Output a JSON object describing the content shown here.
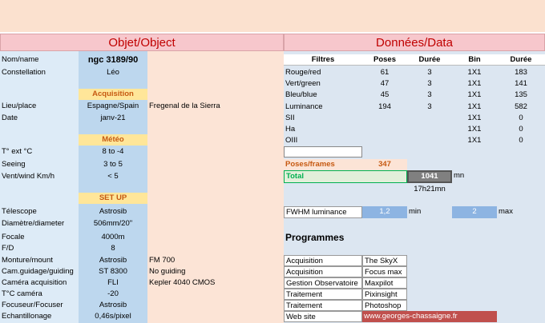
{
  "headers": {
    "object": "Objet/Object",
    "data": "Données/Data"
  },
  "left_rows": [
    {
      "label": "Nom/name",
      "value": "ngc 3189/90",
      "note": ""
    },
    {
      "label": "Constellation",
      "value": "Léo",
      "note": ""
    },
    {
      "label": "",
      "value": "Acquisition",
      "note": ""
    },
    {
      "label": "Lieu/place",
      "value": "Espagne/Spain",
      "note": "Fregenal de la Sierra"
    },
    {
      "label": "Date",
      "value": "janv-21",
      "note": ""
    },
    {
      "label": "",
      "value": "Météo",
      "note": ""
    },
    {
      "label": "T° ext °C",
      "value": "8 to -4",
      "note": ""
    },
    {
      "label": "Seeing",
      "value": "3 to 5",
      "note": ""
    },
    {
      "label": "Vent/wind  Km/h",
      "value": "< 5",
      "note": ""
    },
    {
      "label": "",
      "value": "SET UP",
      "note": ""
    },
    {
      "label": "Télescope",
      "value": "Astrosib",
      "note": ""
    },
    {
      "label": "Diamètre/diameter",
      "value": "506mm/20\"",
      "note": ""
    },
    {
      "label": "Focale",
      "value": "4000m",
      "note": ""
    },
    {
      "label": "F/D",
      "value": "8",
      "note": ""
    },
    {
      "label": "Monture/mount",
      "value": "Astrosib",
      "note": "FM 700"
    },
    {
      "label": "Cam.guidage/guiding",
      "value": "ST 8300",
      "note": "No guiding"
    },
    {
      "label": "Caméra acquisition",
      "value": "FLI",
      "note": "Kepler 4040 CMOS"
    },
    {
      "label": "T°C caméra",
      "value": "-20",
      "note": ""
    },
    {
      "label": "Focuseur/Focuser",
      "value": "Astrosib",
      "note": ""
    },
    {
      "label": "Echantillonage",
      "value": "0,46s/pixel",
      "note": ""
    }
  ],
  "filters_table": {
    "columns": [
      "Filtres",
      "Poses",
      "Durée",
      "Bin",
      "Durée"
    ],
    "rows": [
      [
        "Rouge/red",
        "61",
        "3",
        "1X1",
        "183"
      ],
      [
        "Vert/green",
        "47",
        "3",
        "1X1",
        "141"
      ],
      [
        "Bleu/blue",
        "45",
        "3",
        "1X1",
        "135"
      ],
      [
        "Luminance",
        "194",
        "3",
        "1X1",
        "582"
      ],
      [
        "SII",
        "",
        "",
        "1X1",
        "0"
      ],
      [
        "Ha",
        "",
        "",
        "1X1",
        "0"
      ],
      [
        "OIII",
        "",
        "",
        "1X1",
        "0"
      ]
    ]
  },
  "totals": {
    "poses_label": "Poses/frames",
    "poses_value": "347",
    "total_label": "Total",
    "total_value": "1041",
    "total_unit": "mn",
    "total_hm": "17h21mn"
  },
  "fwhm": {
    "label": "FWHM luminance",
    "min_value": "1,2",
    "min_label": "min",
    "max_value": "2",
    "max_label": "max"
  },
  "programs": {
    "title": "Programmes",
    "rows": [
      [
        "Acquisition",
        "The SkyX"
      ],
      [
        "Acquisition",
        "Focus max"
      ],
      [
        "Gestion Observatoire",
        "Maxpilot"
      ],
      [
        "Traitement",
        "Pixinsight"
      ],
      [
        "Traitement",
        "Photoshop"
      ],
      [
        "Web site",
        "www.georges-chassaigne.fr"
      ]
    ]
  },
  "colors": {
    "header_bg": "#f7c7cc",
    "header_text": "#c00000",
    "section_bg": "#ffe699",
    "section_text": "#c65911",
    "link_bg": "#c0504d",
    "total_green": "#00b050"
  }
}
